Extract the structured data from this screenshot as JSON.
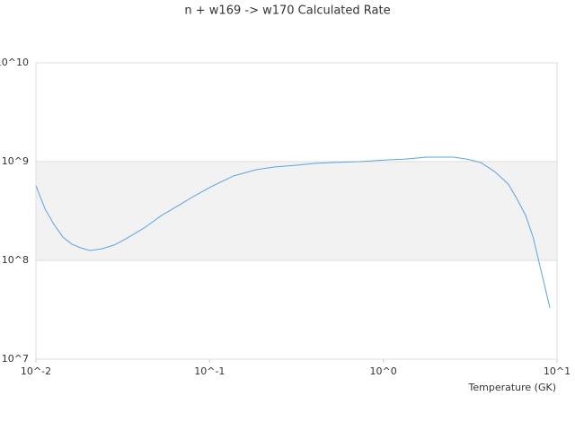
{
  "chart_data": {
    "type": "line",
    "title": "n + w169 -> w170 Calculated Rate",
    "x_label": "Temperature (GK)",
    "x_log": true,
    "y_log": true,
    "grid": true,
    "xlim": [
      0.01,
      10
    ],
    "ylim": [
      10000000,
      10000000000
    ],
    "xticks": [
      {
        "value": 0.01,
        "label": "10^-2"
      },
      {
        "value": 0.1,
        "label": "10^-1"
      },
      {
        "value": 1,
        "label": "10^0"
      },
      {
        "value": 10,
        "label": "10^1"
      }
    ],
    "yticks": [
      {
        "value": 10000000,
        "label": "10^7"
      },
      {
        "value": 100000000,
        "label": "10^8"
      },
      {
        "value": 1000000000,
        "label": "10^9"
      },
      {
        "value": 10000000000,
        "label": "10^10"
      }
    ],
    "x": [
      0.01,
      0.0113,
      0.0127,
      0.0143,
      0.0161,
      0.0181,
      0.0204,
      0.0239,
      0.0282,
      0.0329,
      0.0418,
      0.0529,
      0.0672,
      0.0803,
      0.1017,
      0.137,
      0.185,
      0.235,
      0.316,
      0.4,
      0.51,
      0.73,
      1.04,
      1.32,
      1.78,
      2.54,
      3.04,
      3.64,
      4.37,
      5.24,
      5.9,
      6.6,
      7.3,
      9.1
    ],
    "series": [
      {
        "color": "#5aa3e6",
        "values": [
          569000000,
          330000000,
          231000000,
          172000000,
          146000000,
          134000000,
          126000000,
          131000000,
          143000000,
          165000000,
          212000000,
          285000000,
          366000000,
          442000000,
          556000000,
          716000000,
          828000000,
          881000000,
          920000000,
          960000000,
          980000000,
          1000000000,
          1040000000,
          1060000000,
          1110000000,
          1110000000,
          1060000000,
          980000000,
          794000000,
          593000000,
          415000000,
          285000000,
          169000000,
          33000000
        ]
      }
    ]
  }
}
